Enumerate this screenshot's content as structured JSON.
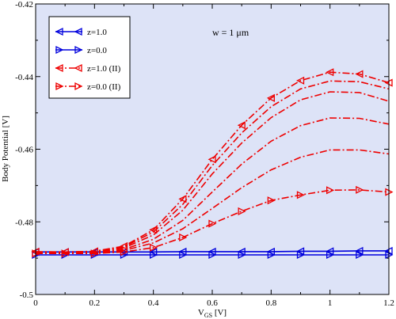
{
  "chart_data": {
    "type": "line",
    "xlabel": "V",
    "xlabel_sub": "GS",
    "xlabel_unit": " [V]",
    "ylabel": "Body Potential [V]",
    "xlim": [
      0,
      1.2
    ],
    "ylim": [
      -0.5,
      -0.42
    ],
    "xticks": [
      "0",
      "0.2",
      "0.4",
      "0.6",
      "0.8",
      "1",
      "1.2"
    ],
    "yticks": [
      "-0.5",
      "-0.48",
      "-0.46",
      "-0.44",
      "-0.42"
    ],
    "annotation": "w = 1 μm",
    "plot_background": "#dde3f7",
    "legend_position": "top-left",
    "legend": [
      {
        "label": "z=1.0",
        "color": "#0000dd",
        "dash": "solid",
        "marker": "tri-left"
      },
      {
        "label": "z=0.0",
        "color": "#0000dd",
        "dash": "solid",
        "marker": "tri-right"
      },
      {
        "label": "z=1.0 (II)",
        "color": "#ee0000",
        "dash": "dashdot",
        "marker": "tri-left"
      },
      {
        "label": "z=0.0 (II)",
        "color": "#ee0000",
        "dash": "dashdot",
        "marker": "tri-right"
      }
    ],
    "series": [
      {
        "color": "#0000dd",
        "dash": "solid",
        "marker": "tri-left",
        "x": [
          0,
          0.1,
          0.2,
          0.3,
          0.4,
          0.5,
          0.6,
          0.7,
          0.8,
          0.9,
          1.0,
          1.1,
          1.2
        ],
        "y": [
          -0.4883,
          -0.4883,
          -0.4883,
          -0.4883,
          -0.4883,
          -0.4882,
          -0.4882,
          -0.4882,
          -0.4882,
          -0.4881,
          -0.4881,
          -0.488,
          -0.488
        ]
      },
      {
        "color": "#0000dd",
        "dash": "solid",
        "marker": "tri-right",
        "x": [
          0,
          0.1,
          0.2,
          0.3,
          0.4,
          0.5,
          0.6,
          0.7,
          0.8,
          0.9,
          1.0,
          1.1,
          1.2
        ],
        "y": [
          -0.4891,
          -0.4891,
          -0.4891,
          -0.4891,
          -0.4891,
          -0.4891,
          -0.4891,
          -0.4891,
          -0.4891,
          -0.4891,
          -0.4891,
          -0.4891,
          -0.4891
        ]
      },
      {
        "color": "#ee0000",
        "dash": "dashdot",
        "marker": "tri-left",
        "x": [
          0,
          0.1,
          0.2,
          0.3,
          0.4,
          0.5,
          0.6,
          0.7,
          0.8,
          0.9,
          1.0,
          1.1,
          1.2
        ],
        "y": [
          -0.4882,
          -0.4883,
          -0.4881,
          -0.4867,
          -0.4822,
          -0.4737,
          -0.4628,
          -0.4534,
          -0.4459,
          -0.4411,
          -0.4388,
          -0.4393,
          -0.4417
        ]
      },
      {
        "color": "#ee0000",
        "dash": "dashdot",
        "marker": "none",
        "x": [
          0,
          0.1,
          0.2,
          0.3,
          0.4,
          0.5,
          0.6,
          0.7,
          0.8,
          0.9,
          1.0,
          1.1,
          1.2
        ],
        "y": [
          -0.4883,
          -0.4883,
          -0.4882,
          -0.4869,
          -0.4828,
          -0.4752,
          -0.4645,
          -0.4555,
          -0.4483,
          -0.4434,
          -0.4412,
          -0.4414,
          -0.4434
        ]
      },
      {
        "color": "#ee0000",
        "dash": "dashdot",
        "marker": "none",
        "x": [
          0,
          0.1,
          0.2,
          0.3,
          0.4,
          0.5,
          0.6,
          0.7,
          0.8,
          0.9,
          1.0,
          1.1,
          1.2
        ],
        "y": [
          -0.4884,
          -0.4884,
          -0.4883,
          -0.4872,
          -0.4836,
          -0.4768,
          -0.4668,
          -0.4583,
          -0.4513,
          -0.4464,
          -0.4442,
          -0.4444,
          -0.4468
        ]
      },
      {
        "color": "#ee0000",
        "dash": "dashdot",
        "marker": "none",
        "x": [
          0,
          0.1,
          0.2,
          0.3,
          0.4,
          0.5,
          0.6,
          0.7,
          0.8,
          0.9,
          1.0,
          1.1,
          1.2
        ],
        "y": [
          -0.4885,
          -0.4885,
          -0.4884,
          -0.4876,
          -0.4848,
          -0.4796,
          -0.4718,
          -0.4641,
          -0.4578,
          -0.4535,
          -0.4514,
          -0.4515,
          -0.4531
        ]
      },
      {
        "color": "#ee0000",
        "dash": "dashdot",
        "marker": "none",
        "x": [
          0,
          0.1,
          0.2,
          0.3,
          0.4,
          0.5,
          0.6,
          0.7,
          0.8,
          0.9,
          1.0,
          1.1,
          1.2
        ],
        "y": [
          -0.4886,
          -0.4886,
          -0.4885,
          -0.4879,
          -0.4858,
          -0.4819,
          -0.4763,
          -0.4706,
          -0.4657,
          -0.4622,
          -0.4602,
          -0.4602,
          -0.4613
        ]
      },
      {
        "color": "#ee0000",
        "dash": "dashdot",
        "marker": "tri-right",
        "x": [
          0,
          0.1,
          0.2,
          0.3,
          0.4,
          0.5,
          0.6,
          0.7,
          0.8,
          0.9,
          1.0,
          1.1,
          1.2
        ],
        "y": [
          -0.4887,
          -0.4887,
          -0.4887,
          -0.4883,
          -0.4871,
          -0.4843,
          -0.4805,
          -0.4771,
          -0.4741,
          -0.4726,
          -0.4713,
          -0.4712,
          -0.4718
        ]
      }
    ]
  }
}
